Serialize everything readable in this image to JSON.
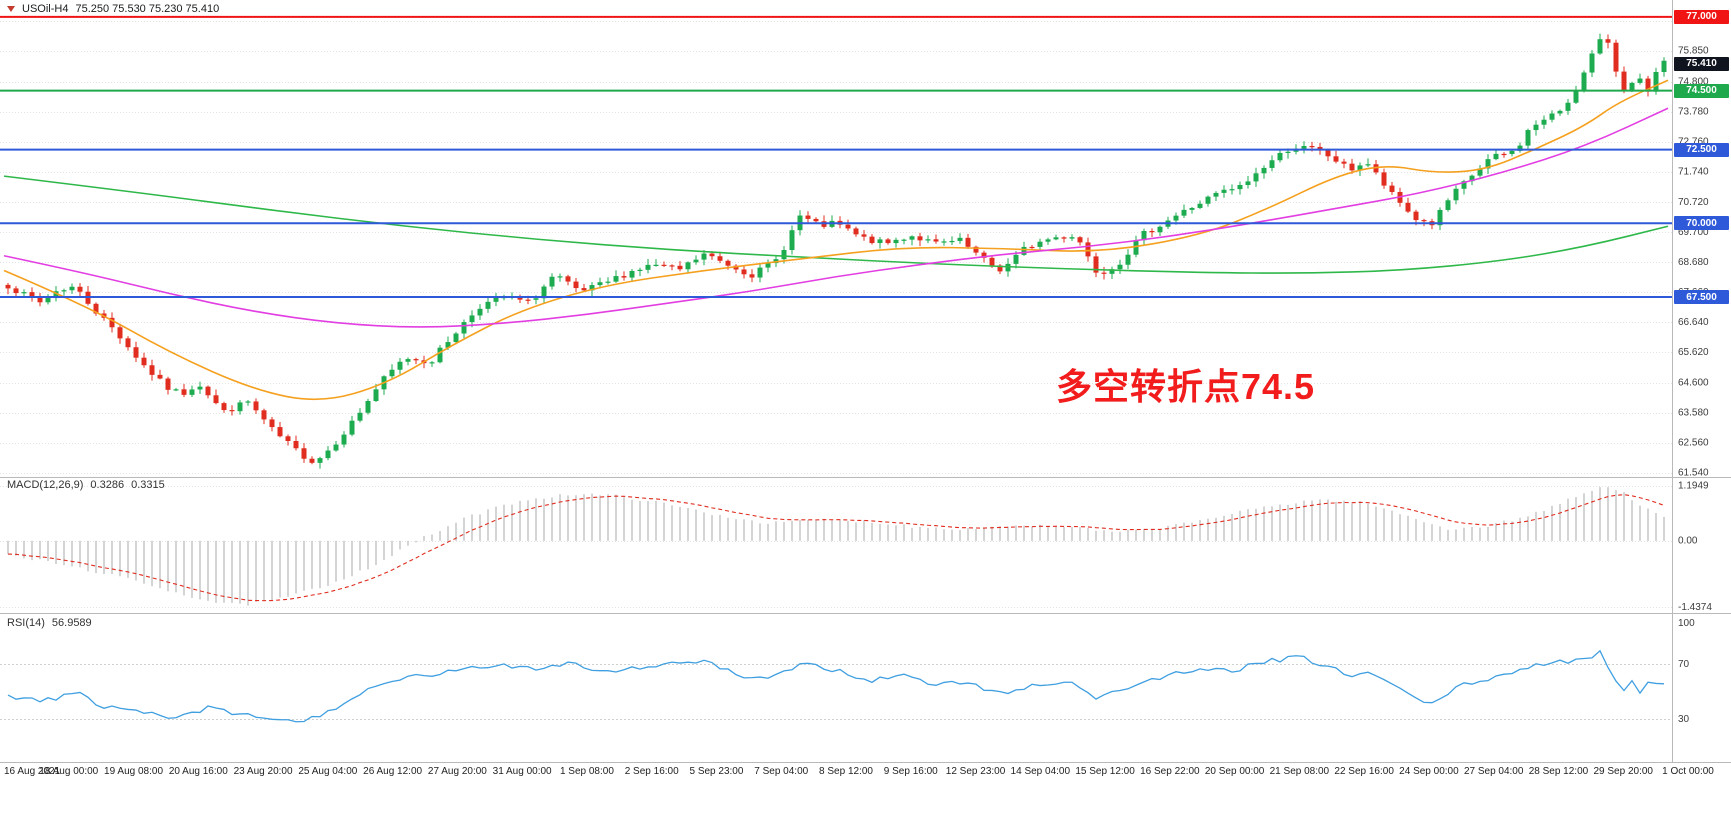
{
  "header": {
    "symbol": "USOil-H4",
    "ohlc": "75.250 75.530 75.230 75.410"
  },
  "annotation": {
    "text": "多空转折点74.5",
    "color": "#f21c1c"
  },
  "price_axis": {
    "ticks": [
      "76.870",
      "75.850",
      "74.800",
      "73.780",
      "72.760",
      "71.740",
      "70.720",
      "69.700",
      "68.680",
      "67.660",
      "66.640",
      "65.620",
      "64.600",
      "63.580",
      "62.560",
      "61.540"
    ],
    "tick_values": [
      76.87,
      75.85,
      74.8,
      73.78,
      72.76,
      71.74,
      70.72,
      69.7,
      68.68,
      67.66,
      66.64,
      65.62,
      64.6,
      63.58,
      62.56,
      61.54
    ]
  },
  "levels": [
    {
      "label": "77.000",
      "value": 77.0,
      "color": "#f01414",
      "line": true,
      "type": "resistance"
    },
    {
      "label": "75.410",
      "value": 75.41,
      "color": "#10141f",
      "line": false,
      "type": "current-price"
    },
    {
      "label": "74.500",
      "value": 74.5,
      "color": "#1fa94d",
      "line": true,
      "type": "pivot"
    },
    {
      "label": "72.500",
      "value": 72.5,
      "color": "#2e59d9",
      "line": true,
      "type": "support"
    },
    {
      "label": "70.000",
      "value": 70.0,
      "color": "#2e59d9",
      "line": true,
      "type": "support"
    },
    {
      "label": "67.500",
      "value": 67.5,
      "color": "#2e59d9",
      "line": true,
      "type": "support"
    }
  ],
  "indicators": {
    "macd": {
      "label": "MACD(12,26,9)",
      "value_main": "0.3286",
      "value_signal": "0.3315",
      "axis_labels": [
        "1.1949",
        "0.00",
        "-1.4374"
      ],
      "axis_values": [
        1.1949,
        0,
        -1.4374
      ]
    },
    "rsi": {
      "label": "RSI(14)",
      "value": "56.9589",
      "axis_labels": [
        "100",
        "70",
        "30"
      ],
      "axis_values": [
        100,
        70,
        30
      ]
    }
  },
  "time_axis": {
    "labels": [
      "16 Aug 2021",
      "18 Aug 00:00",
      "19 Aug 08:00",
      "20 Aug 16:00",
      "23 Aug 20:00",
      "25 Aug 04:00",
      "26 Aug 12:00",
      "27 Aug 20:00",
      "31 Aug 00:00",
      "1 Sep 08:00",
      "2 Sep 16:00",
      "5 Sep 23:00",
      "7 Sep 04:00",
      "8 Sep 12:00",
      "9 Sep 16:00",
      "12 Sep 23:00",
      "14 Sep 04:00",
      "15 Sep 12:00",
      "16 Sep 22:00",
      "20 Sep 00:00",
      "21 Sep 08:00",
      "22 Sep 16:00",
      "24 Sep 00:00",
      "27 Sep 04:00",
      "28 Sep 12:00",
      "29 Sep 20:00",
      "1 Oct 00:00"
    ]
  },
  "colors": {
    "up": "#1cab4f",
    "down": "#e02d1f",
    "ma_slow_green": "#2fb84a",
    "ma_mid_orange": "#f5a01e",
    "ma_fast_magenta": "#e23ee2",
    "macd_hist": "#c9c9c9",
    "macd_signal": "#e02d1f",
    "rsi_line": "#3f9fe0",
    "grid": "#e3e3e3",
    "axis_text": "#3c3c3c",
    "separator": "#b9b9b9"
  },
  "chart_data": {
    "type": "candlestick",
    "title": "USOil-H4",
    "symbol": "USOil",
    "timeframe": "H4",
    "ohlc_display": {
      "open": 75.25,
      "high": 75.53,
      "low": 75.23,
      "close": 75.41
    },
    "bars": 208,
    "price_range": [
      61.5,
      77.3
    ],
    "horizontal_levels": [
      77.0,
      74.5,
      72.5,
      70.0,
      67.5
    ],
    "close_anchors": [
      [
        0.0,
        67.9
      ],
      [
        0.01,
        67.55
      ],
      [
        0.02,
        67.3
      ],
      [
        0.03,
        67.75
      ],
      [
        0.04,
        67.85
      ],
      [
        0.055,
        66.9
      ],
      [
        0.065,
        66.35
      ],
      [
        0.08,
        65.3
      ],
      [
        0.095,
        64.45
      ],
      [
        0.105,
        64.2
      ],
      [
        0.115,
        64.6
      ],
      [
        0.13,
        63.6
      ],
      [
        0.145,
        63.95
      ],
      [
        0.16,
        62.95
      ],
      [
        0.175,
        62.25
      ],
      [
        0.185,
        61.9
      ],
      [
        0.195,
        62.4
      ],
      [
        0.21,
        63.4
      ],
      [
        0.225,
        64.6
      ],
      [
        0.24,
        65.45
      ],
      [
        0.255,
        65.3
      ],
      [
        0.27,
        66.3
      ],
      [
        0.285,
        67.2
      ],
      [
        0.3,
        67.5
      ],
      [
        0.315,
        67.3
      ],
      [
        0.33,
        68.25
      ],
      [
        0.345,
        67.65
      ],
      [
        0.36,
        67.95
      ],
      [
        0.375,
        68.35
      ],
      [
        0.39,
        68.6
      ],
      [
        0.405,
        68.4
      ],
      [
        0.42,
        68.95
      ],
      [
        0.435,
        68.6
      ],
      [
        0.45,
        68.25
      ],
      [
        0.465,
        68.8
      ],
      [
        0.478,
        70.25
      ],
      [
        0.49,
        69.9
      ],
      [
        0.5,
        70.0
      ],
      [
        0.515,
        69.5
      ],
      [
        0.53,
        69.3
      ],
      [
        0.545,
        69.6
      ],
      [
        0.56,
        69.3
      ],
      [
        0.575,
        69.4
      ],
      [
        0.59,
        68.7
      ],
      [
        0.6,
        68.4
      ],
      [
        0.615,
        69.2
      ],
      [
        0.63,
        69.5
      ],
      [
        0.645,
        69.6
      ],
      [
        0.658,
        68.3
      ],
      [
        0.67,
        68.6
      ],
      [
        0.685,
        69.6
      ],
      [
        0.7,
        70.1
      ],
      [
        0.715,
        70.55
      ],
      [
        0.73,
        71.0
      ],
      [
        0.745,
        71.25
      ],
      [
        0.76,
        72.0
      ],
      [
        0.775,
        72.6
      ],
      [
        0.79,
        72.5
      ],
      [
        0.8,
        72.2
      ],
      [
        0.81,
        71.8
      ],
      [
        0.82,
        72.1
      ],
      [
        0.835,
        71.0
      ],
      [
        0.85,
        70.15
      ],
      [
        0.86,
        69.98
      ],
      [
        0.87,
        70.8
      ],
      [
        0.88,
        71.4
      ],
      [
        0.895,
        72.2
      ],
      [
        0.91,
        72.45
      ],
      [
        0.92,
        73.3
      ],
      [
        0.93,
        73.55
      ],
      [
        0.94,
        73.95
      ],
      [
        0.95,
        74.85
      ],
      [
        0.958,
        75.9
      ],
      [
        0.965,
        76.4
      ],
      [
        0.972,
        75.0
      ],
      [
        0.978,
        74.4
      ],
      [
        0.984,
        75.1
      ],
      [
        0.989,
        74.15
      ],
      [
        0.993,
        74.9
      ],
      [
        1.0,
        75.41
      ]
    ],
    "moving_averages": [
      {
        "name": "ma-slow-green",
        "color": "#2fb84a",
        "points": [
          [
            0,
            71.6
          ],
          [
            0.08,
            71.05
          ],
          [
            0.16,
            70.45
          ],
          [
            0.24,
            69.9
          ],
          [
            0.32,
            69.45
          ],
          [
            0.4,
            69.1
          ],
          [
            0.48,
            68.85
          ],
          [
            0.56,
            68.62
          ],
          [
            0.64,
            68.45
          ],
          [
            0.72,
            68.33
          ],
          [
            0.78,
            68.3
          ],
          [
            0.84,
            68.4
          ],
          [
            0.9,
            68.72
          ],
          [
            0.95,
            69.2
          ],
          [
            1,
            69.9
          ]
        ]
      },
      {
        "name": "ma-mid-orange",
        "color": "#f5a01e",
        "points": [
          [
            0,
            68.4
          ],
          [
            0.05,
            67.2
          ],
          [
            0.1,
            65.6
          ],
          [
            0.15,
            64.35
          ],
          [
            0.19,
            63.9
          ],
          [
            0.23,
            64.55
          ],
          [
            0.27,
            65.9
          ],
          [
            0.31,
            67.05
          ],
          [
            0.36,
            67.9
          ],
          [
            0.42,
            68.4
          ],
          [
            0.48,
            68.8
          ],
          [
            0.54,
            69.2
          ],
          [
            0.6,
            69.15
          ],
          [
            0.66,
            69.0
          ],
          [
            0.72,
            69.6
          ],
          [
            0.76,
            70.5
          ],
          [
            0.8,
            71.6
          ],
          [
            0.83,
            72.0
          ],
          [
            0.86,
            71.7
          ],
          [
            0.89,
            71.8
          ],
          [
            0.92,
            72.5
          ],
          [
            0.95,
            73.3
          ],
          [
            0.97,
            74.1
          ],
          [
            1,
            74.85
          ]
        ]
      },
      {
        "name": "ma-fast-magenta",
        "color": "#e23ee2",
        "points": [
          [
            0,
            68.9
          ],
          [
            0.05,
            68.3
          ],
          [
            0.1,
            67.6
          ],
          [
            0.15,
            67.0
          ],
          [
            0.2,
            66.6
          ],
          [
            0.25,
            66.45
          ],
          [
            0.3,
            66.6
          ],
          [
            0.35,
            66.9
          ],
          [
            0.4,
            67.3
          ],
          [
            0.45,
            67.7
          ],
          [
            0.5,
            68.2
          ],
          [
            0.55,
            68.6
          ],
          [
            0.6,
            68.95
          ],
          [
            0.65,
            69.2
          ],
          [
            0.7,
            69.55
          ],
          [
            0.75,
            70.0
          ],
          [
            0.8,
            70.5
          ],
          [
            0.85,
            71.0
          ],
          [
            0.9,
            71.7
          ],
          [
            0.95,
            72.6
          ],
          [
            1,
            73.9
          ]
        ]
      }
    ],
    "macd": {
      "params": "12,26,9",
      "value_main": 0.3286,
      "value_signal": 0.3315,
      "range": [
        -1.4374,
        1.1949
      ],
      "anchors": [
        [
          0.0,
          -0.3
        ],
        [
          0.03,
          -0.5
        ],
        [
          0.06,
          -0.72
        ],
        [
          0.09,
          -1.0
        ],
        [
          0.12,
          -1.3
        ],
        [
          0.14,
          -1.4
        ],
        [
          0.16,
          -1.3
        ],
        [
          0.19,
          -1.0
        ],
        [
          0.22,
          -0.55
        ],
        [
          0.25,
          0.05
        ],
        [
          0.28,
          0.55
        ],
        [
          0.31,
          0.88
        ],
        [
          0.34,
          1.02
        ],
        [
          0.37,
          0.97
        ],
        [
          0.4,
          0.78
        ],
        [
          0.43,
          0.55
        ],
        [
          0.46,
          0.38
        ],
        [
          0.49,
          0.46
        ],
        [
          0.52,
          0.42
        ],
        [
          0.55,
          0.3
        ],
        [
          0.58,
          0.26
        ],
        [
          0.61,
          0.34
        ],
        [
          0.64,
          0.3
        ],
        [
          0.67,
          0.18
        ],
        [
          0.7,
          0.3
        ],
        [
          0.73,
          0.52
        ],
        [
          0.76,
          0.74
        ],
        [
          0.79,
          0.9
        ],
        [
          0.82,
          0.82
        ],
        [
          0.85,
          0.48
        ],
        [
          0.87,
          0.26
        ],
        [
          0.89,
          0.3
        ],
        [
          0.91,
          0.46
        ],
        [
          0.93,
          0.7
        ],
        [
          0.95,
          1.0
        ],
        [
          0.963,
          1.19
        ],
        [
          0.975,
          1.05
        ],
        [
          0.985,
          0.8
        ],
        [
          1.0,
          0.55
        ]
      ]
    },
    "rsi": {
      "period": 14,
      "value": 56.9589,
      "range": [
        0,
        100
      ],
      "overbought": 70,
      "oversold": 30,
      "anchors": [
        [
          0.0,
          48
        ],
        [
          0.02,
          42
        ],
        [
          0.04,
          50
        ],
        [
          0.06,
          38
        ],
        [
          0.08,
          35
        ],
        [
          0.1,
          30
        ],
        [
          0.12,
          38
        ],
        [
          0.14,
          33
        ],
        [
          0.16,
          30
        ],
        [
          0.18,
          28
        ],
        [
          0.2,
          40
        ],
        [
          0.22,
          52
        ],
        [
          0.24,
          60
        ],
        [
          0.27,
          65
        ],
        [
          0.3,
          70
        ],
        [
          0.32,
          67
        ],
        [
          0.34,
          72
        ],
        [
          0.36,
          64
        ],
        [
          0.38,
          68
        ],
        [
          0.4,
          70
        ],
        [
          0.42,
          73
        ],
        [
          0.44,
          62
        ],
        [
          0.46,
          58
        ],
        [
          0.478,
          71
        ],
        [
          0.5,
          66
        ],
        [
          0.52,
          58
        ],
        [
          0.54,
          62
        ],
        [
          0.56,
          55
        ],
        [
          0.58,
          57
        ],
        [
          0.6,
          48
        ],
        [
          0.62,
          55
        ],
        [
          0.64,
          58
        ],
        [
          0.658,
          45
        ],
        [
          0.68,
          55
        ],
        [
          0.7,
          62
        ],
        [
          0.72,
          65
        ],
        [
          0.74,
          66
        ],
        [
          0.76,
          72
        ],
        [
          0.78,
          75
        ],
        [
          0.8,
          68
        ],
        [
          0.81,
          60
        ],
        [
          0.82,
          65
        ],
        [
          0.84,
          52
        ],
        [
          0.85,
          46
        ],
        [
          0.86,
          40
        ],
        [
          0.87,
          50
        ],
        [
          0.88,
          55
        ],
        [
          0.9,
          62
        ],
        [
          0.92,
          68
        ],
        [
          0.94,
          72
        ],
        [
          0.955,
          76
        ],
        [
          0.963,
          79
        ],
        [
          0.97,
          58
        ],
        [
          0.976,
          52
        ],
        [
          0.981,
          58
        ],
        [
          0.986,
          50
        ],
        [
          0.991,
          56
        ],
        [
          1.0,
          57
        ]
      ]
    }
  }
}
